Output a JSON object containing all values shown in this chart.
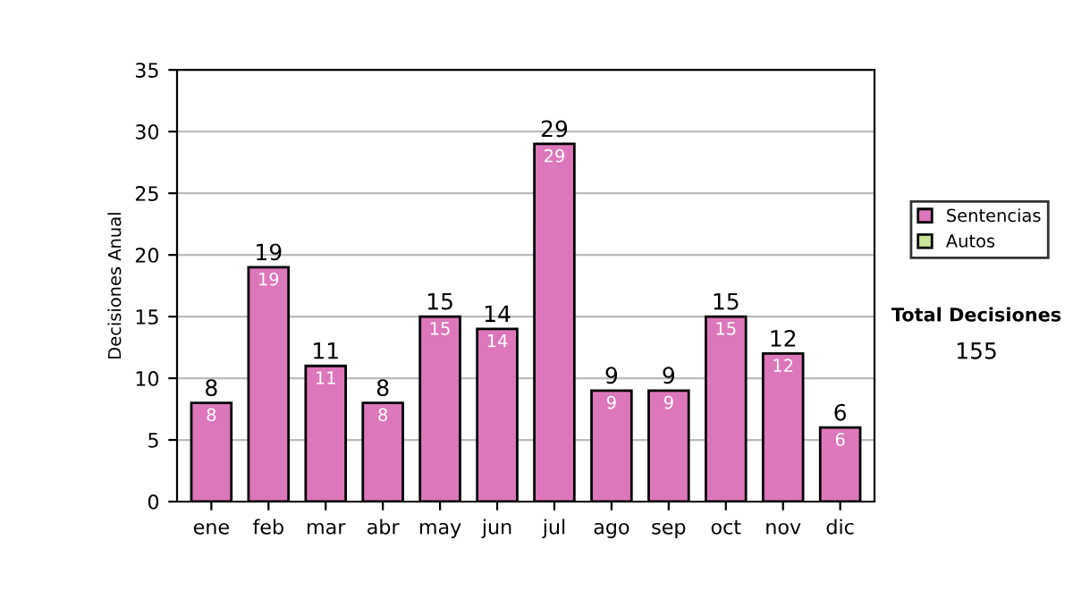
{
  "chart_data": {
    "type": "bar",
    "ylabel": "Decisiones Anual",
    "categories": [
      "ene",
      "feb",
      "mar",
      "abr",
      "may",
      "jun",
      "jul",
      "ago",
      "sep",
      "oct",
      "nov",
      "dic"
    ],
    "series": [
      {
        "name": "Sentencias",
        "color": "#dd77bb",
        "values": [
          8,
          19,
          11,
          8,
          15,
          14,
          29,
          9,
          9,
          15,
          12,
          6
        ]
      },
      {
        "name": "Autos",
        "color": "#cce699",
        "values": [
          null,
          null,
          null,
          null,
          null,
          null,
          null,
          null,
          null,
          null,
          null,
          null
        ]
      }
    ],
    "stacked": true,
    "data_labels": true,
    "totals": [
      "8",
      "19",
      "11",
      "8",
      "15",
      "14",
      "29",
      "9",
      "9",
      "15",
      "12",
      "6"
    ],
    "ylim": [
      0,
      35
    ],
    "yticks": [
      0,
      5,
      10,
      15,
      20,
      25,
      30,
      35
    ],
    "grid": "y",
    "legend": "right",
    "annotations": [
      "Total Decisiones",
      "155"
    ]
  }
}
